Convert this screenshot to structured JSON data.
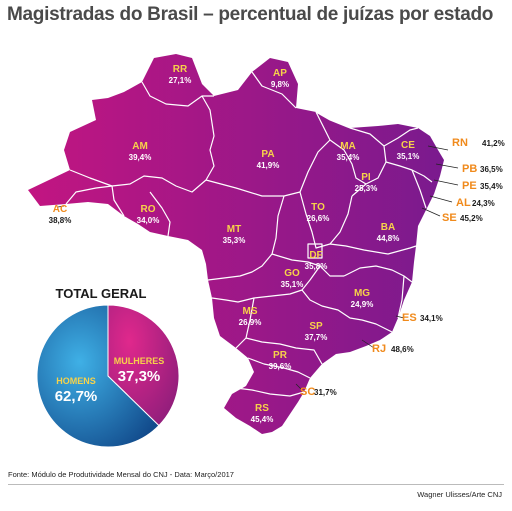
{
  "chart_data": [
    {
      "type": "map",
      "title": "Magistradas do Brasil – percentual de juízas por estado",
      "regions": [
        {
          "code": "RR",
          "value": "27,1%"
        },
        {
          "code": "AP",
          "value": "9,8%"
        },
        {
          "code": "AM",
          "value": "39,4%"
        },
        {
          "code": "PA",
          "value": "41,9%"
        },
        {
          "code": "MA",
          "value": "35,4%"
        },
        {
          "code": "CE",
          "value": "35,1%"
        },
        {
          "code": "RN",
          "value": "41,2%"
        },
        {
          "code": "PB",
          "value": "36,5%"
        },
        {
          "code": "PE",
          "value": "35,4%"
        },
        {
          "code": "AL",
          "value": "24,3%"
        },
        {
          "code": "SE",
          "value": "45,2%"
        },
        {
          "code": "PI",
          "value": "25,3%"
        },
        {
          "code": "AC",
          "value": "38,8%"
        },
        {
          "code": "RO",
          "value": "34,0%"
        },
        {
          "code": "MT",
          "value": "35,3%"
        },
        {
          "code": "TO",
          "value": "26,6%"
        },
        {
          "code": "BA",
          "value": "44,8%"
        },
        {
          "code": "DF",
          "value": "35,8%"
        },
        {
          "code": "GO",
          "value": "35,1%"
        },
        {
          "code": "MG",
          "value": "24,9%"
        },
        {
          "code": "ES",
          "value": "34,1%"
        },
        {
          "code": "MS",
          "value": "26,9%"
        },
        {
          "code": "SP",
          "value": "37,7%"
        },
        {
          "code": "RJ",
          "value": "48,6%"
        },
        {
          "code": "PR",
          "value": "39,6%"
        },
        {
          "code": "SC",
          "value": "31,7%"
        },
        {
          "code": "RS",
          "value": "45,4%"
        }
      ]
    },
    {
      "type": "pie",
      "title": "TOTAL GERAL",
      "slices": [
        {
          "label": "MULHERES",
          "value": 37.3,
          "value_text": "37,3%",
          "color": "#d2207e"
        },
        {
          "label": "HOMENS",
          "value": 62.7,
          "value_text": "62,7%",
          "color": "#1f86c8"
        }
      ]
    }
  ],
  "colors": {
    "map_west": "#c21581",
    "map_east": "#7a1a8e",
    "label_dark": "#1a1a1a",
    "label_orange": "#f08a1c",
    "pie_women": "#d2207e",
    "pie_men": "#1f86c8"
  },
  "footer": {
    "source": "Fonte: Módulo de Produtividade Mensal do CNJ - Data: Março/2017",
    "credit": "Wagner Ulisses/Arte CNJ"
  }
}
